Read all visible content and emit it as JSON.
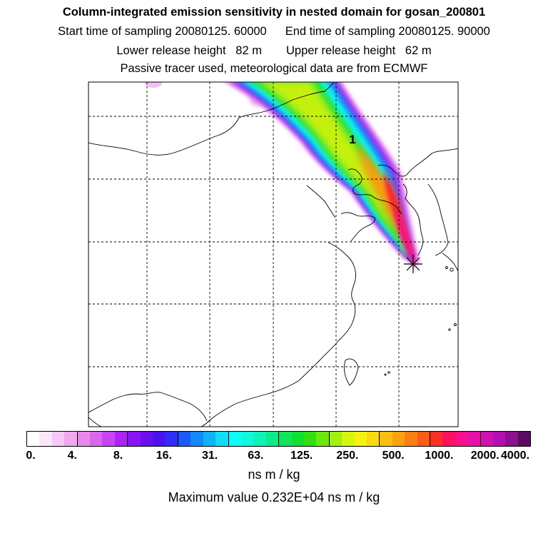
{
  "title": {
    "line1": "Column-integrated emission sensitivity in nested domain for gosan_200801",
    "start_sampling": "Start time of sampling 20080125. 60000",
    "end_sampling": "End time of sampling 20080125. 90000",
    "lower_release": "Lower release height   82 m",
    "upper_release": "Upper release height   62 m",
    "line4": "Passive tracer used, meteorological data are from ECMWF"
  },
  "map": {
    "max_marker_label": "1",
    "receptor_marker": "receptor-star"
  },
  "colorbar": {
    "colors": [
      "#ffffff",
      "#fbe6fb",
      "#f7c8f7",
      "#f0a8f0",
      "#e888ec",
      "#dc66f0",
      "#c844f6",
      "#ae22f8",
      "#8a12f4",
      "#6a10ec",
      "#4a12f0",
      "#2e2ef8",
      "#1a5af8",
      "#1288fa",
      "#10b2fa",
      "#10dcf8",
      "#10fcf6",
      "#10f8e0",
      "#10f2b8",
      "#10ea8c",
      "#10e45c",
      "#10e030",
      "#30e010",
      "#6ce810",
      "#a4f010",
      "#d6f610",
      "#f6f210",
      "#fcd810",
      "#fcbe10",
      "#fca010",
      "#fc8010",
      "#fc5c18",
      "#fc3024",
      "#fc1060",
      "#f8108c",
      "#e810a8",
      "#d010b0",
      "#b410b0",
      "#8c1090",
      "#5c0c60"
    ],
    "tick_labels": [
      "0.",
      "4.",
      "8.",
      "16.",
      "31.",
      "63.",
      "125.",
      "250.",
      "500.",
      "1000.",
      "2000.",
      "4000."
    ],
    "units": "ns m / kg",
    "max_value": "Maximum value  0.232E+04 ns m / kg"
  }
}
